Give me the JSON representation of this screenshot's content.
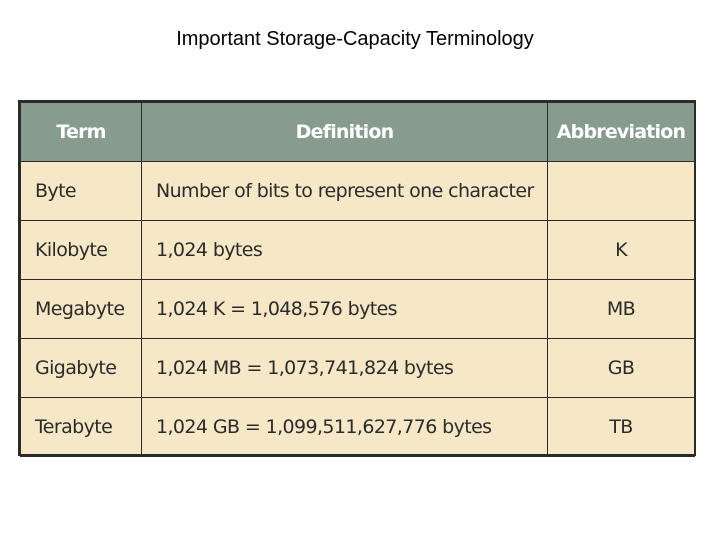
{
  "title": "Important Storage-Capacity Terminology",
  "colors": {
    "header_bg": "#889c8e",
    "header_text": "#ffffff",
    "cell_bg": "#f6e7c6",
    "border": "#2b2b2b",
    "text": "#2b2b2b"
  },
  "table": {
    "headers": [
      "Term",
      "Definition",
      "Abbreviation"
    ],
    "rows": [
      {
        "term": "Byte",
        "definition": "Number of bits to represent one character",
        "abbreviation": ""
      },
      {
        "term": "Kilobyte",
        "definition": "1,024 bytes",
        "abbreviation": "K"
      },
      {
        "term": "Megabyte",
        "definition": "1,024 K = 1,048,576 bytes",
        "abbreviation": "MB"
      },
      {
        "term": "Gigabyte",
        "definition": "1,024 MB = 1,073,741,824 bytes",
        "abbreviation": "GB"
      },
      {
        "term": "Terabyte",
        "definition": "1,024 GB = 1,099,511,627,776 bytes",
        "abbreviation": "TB"
      }
    ]
  }
}
